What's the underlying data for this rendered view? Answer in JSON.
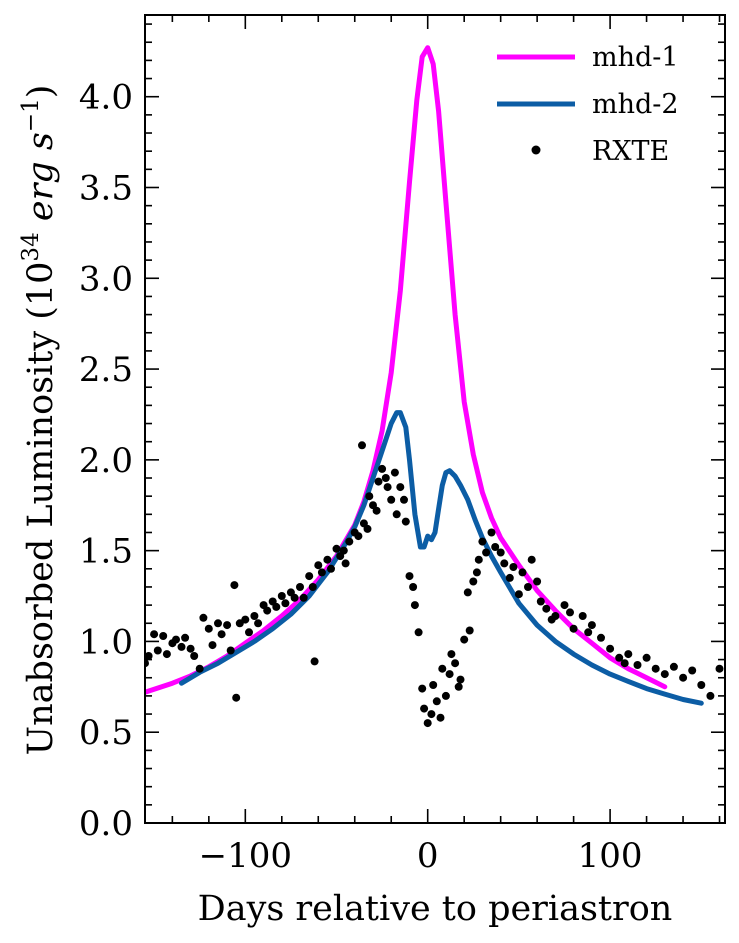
{
  "chart_data": {
    "type": "line",
    "title": "",
    "xlabel": "Days relative to periastron",
    "ylabel": "Unabsorbed Luminosity (10^34 erg s^-1)",
    "ylabel_parts": {
      "prefix": "Unabsorbed Luminosity (10",
      "exp": "34",
      "unit1": "erg s",
      "exp2": "−1",
      "suffix": ")"
    },
    "xlim": [
      -155,
      163
    ],
    "ylim": [
      0.0,
      4.45
    ],
    "xticks": [
      -100,
      0,
      100
    ],
    "xtick_labels": [
      "−100",
      "0",
      "100"
    ],
    "yticks": [
      0.0,
      0.5,
      1.0,
      1.5,
      2.0,
      2.5,
      3.0,
      3.5,
      4.0
    ],
    "ytick_labels": [
      "0.0",
      "0.5",
      "1.0",
      "1.5",
      "2.0",
      "2.5",
      "3.0",
      "3.5",
      "4.0"
    ],
    "legend_position": "top-right",
    "series": [
      {
        "name": "mhd-1",
        "kind": "line",
        "color": "#ff00ff",
        "x": [
          -155,
          -140,
          -130,
          -120,
          -110,
          -100,
          -90,
          -80,
          -70,
          -60,
          -50,
          -40,
          -35,
          -30,
          -25,
          -20,
          -15,
          -10,
          -6,
          -3,
          0,
          3,
          6,
          10,
          15,
          20,
          25,
          30,
          35,
          40,
          50,
          60,
          70,
          80,
          90,
          100,
          110,
          120,
          130
        ],
        "y": [
          0.72,
          0.77,
          0.81,
          0.86,
          0.92,
          0.99,
          1.06,
          1.14,
          1.23,
          1.34,
          1.47,
          1.64,
          1.77,
          1.94,
          2.16,
          2.48,
          2.93,
          3.53,
          3.98,
          4.22,
          4.27,
          4.18,
          3.92,
          3.42,
          2.8,
          2.32,
          2.03,
          1.82,
          1.68,
          1.57,
          1.42,
          1.28,
          1.17,
          1.07,
          0.99,
          0.91,
          0.85,
          0.8,
          0.75
        ]
      },
      {
        "name": "mhd-2",
        "kind": "line",
        "color": "#0c5da5",
        "x": [
          -135,
          -125,
          -115,
          -105,
          -95,
          -85,
          -75,
          -65,
          -55,
          -45,
          -40,
          -35,
          -30,
          -25,
          -20,
          -17,
          -15,
          -12,
          -10,
          -7,
          -4,
          -2,
          0,
          2,
          4,
          6,
          8,
          10,
          12,
          15,
          18,
          22,
          26,
          30,
          35,
          40,
          50,
          60,
          70,
          80,
          90,
          100,
          110,
          120,
          130,
          140,
          150
        ],
        "y": [
          0.77,
          0.83,
          0.88,
          0.94,
          1.0,
          1.07,
          1.15,
          1.25,
          1.38,
          1.54,
          1.63,
          1.75,
          1.9,
          2.05,
          2.2,
          2.26,
          2.26,
          2.18,
          2.0,
          1.7,
          1.52,
          1.52,
          1.58,
          1.56,
          1.6,
          1.73,
          1.86,
          1.93,
          1.94,
          1.91,
          1.86,
          1.78,
          1.67,
          1.57,
          1.47,
          1.38,
          1.21,
          1.09,
          1.0,
          0.93,
          0.87,
          0.82,
          0.78,
          0.74,
          0.71,
          0.68,
          0.66
        ]
      },
      {
        "name": "RXTE",
        "kind": "scatter",
        "color": "#000000",
        "x": [
          -155,
          -153,
          -150,
          -148,
          -145,
          -143,
          -140,
          -138,
          -135,
          -133,
          -130,
          -128,
          -125,
          -123,
          -120,
          -118,
          -115,
          -113,
          -110,
          -108,
          -106,
          -105,
          -103,
          -100,
          -98,
          -95,
          -93,
          -90,
          -88,
          -85,
          -83,
          -80,
          -78,
          -75,
          -73,
          -70,
          -68,
          -65,
          -63,
          -62,
          -60,
          -58,
          -55,
          -53,
          -50,
          -48,
          -46,
          -45,
          -43,
          -40,
          -38,
          -36,
          -35,
          -33,
          -32,
          -30,
          -28,
          -27,
          -25,
          -23,
          -22,
          -20,
          -18,
          -17,
          -15,
          -13,
          -12,
          -10,
          -8,
          -7,
          -5,
          -3,
          -2,
          0,
          2,
          3,
          5,
          7,
          8,
          10,
          12,
          13,
          15,
          17,
          18,
          20,
          22,
          23,
          25,
          27,
          28,
          30,
          32,
          35,
          37,
          40,
          42,
          45,
          47,
          50,
          52,
          55,
          57,
          60,
          62,
          65,
          68,
          70,
          75,
          78,
          80,
          85,
          88,
          90,
          95,
          100,
          105,
          108,
          110,
          115,
          120,
          125,
          130,
          135,
          140,
          145,
          150,
          155,
          160
        ],
        "y": [
          0.88,
          0.92,
          1.04,
          0.95,
          1.03,
          0.93,
          0.99,
          1.01,
          0.97,
          1.02,
          0.96,
          0.92,
          0.85,
          1.13,
          1.07,
          0.98,
          1.1,
          1.04,
          1.09,
          0.95,
          1.31,
          0.69,
          1.1,
          1.12,
          1.05,
          1.14,
          1.1,
          1.2,
          1.17,
          1.22,
          1.19,
          1.25,
          1.21,
          1.27,
          1.24,
          1.3,
          1.24,
          1.36,
          1.3,
          0.89,
          1.42,
          1.38,
          1.45,
          1.4,
          1.51,
          1.47,
          1.5,
          1.43,
          1.55,
          1.6,
          1.58,
          2.08,
          1.65,
          1.62,
          1.8,
          1.75,
          1.72,
          1.88,
          1.95,
          1.9,
          1.85,
          1.78,
          1.93,
          1.7,
          1.85,
          1.78,
          1.66,
          1.36,
          1.3,
          1.2,
          1.05,
          0.74,
          0.63,
          0.55,
          0.6,
          0.76,
          0.67,
          0.58,
          0.85,
          0.7,
          0.82,
          0.93,
          0.88,
          0.75,
          0.79,
          1.01,
          1.27,
          1.06,
          1.33,
          1.38,
          1.45,
          1.55,
          1.49,
          1.6,
          1.52,
          1.49,
          1.43,
          1.35,
          1.41,
          1.26,
          1.38,
          1.3,
          1.45,
          1.33,
          1.22,
          1.18,
          1.12,
          1.14,
          1.2,
          1.16,
          1.07,
          1.14,
          1.05,
          1.09,
          1.02,
          0.96,
          0.91,
          0.88,
          0.93,
          0.87,
          0.91,
          0.85,
          0.82,
          0.86,
          0.8,
          0.84,
          0.76,
          0.7,
          0.85
        ]
      }
    ]
  }
}
